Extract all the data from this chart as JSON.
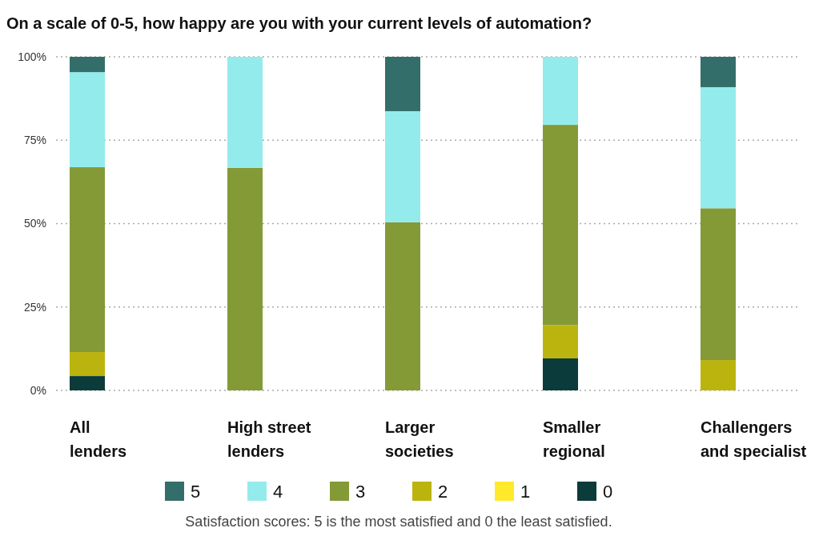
{
  "chart_data": {
    "type": "bar",
    "stacked": true,
    "title": "On a scale of 0-5, how happy are you with your current levels of automation?",
    "categories": [
      "All\nlenders",
      "High street\nlenders",
      "Larger\nsocieties",
      "Smaller\nregional",
      "Challengers\nand specialist"
    ],
    "series": [
      {
        "name": "0",
        "color": "#0b3b3a",
        "values": [
          4.3,
          0,
          0,
          9.6,
          0
        ]
      },
      {
        "name": "1",
        "color": "#ffe92a",
        "values": [
          0,
          0,
          0,
          0,
          0
        ]
      },
      {
        "name": "2",
        "color": "#bbb40e",
        "values": [
          7.2,
          0,
          0,
          10,
          9.1
        ]
      },
      {
        "name": "3",
        "color": "#849a37",
        "values": [
          55.4,
          66.7,
          50.4,
          60,
          45.5
        ]
      },
      {
        "name": "4",
        "color": "#94ebec",
        "values": [
          28.5,
          33.3,
          33.3,
          20.4,
          36.3
        ]
      },
      {
        "name": "5",
        "color": "#336e6a",
        "values": [
          4.6,
          0,
          16.3,
          0,
          9.1
        ]
      }
    ],
    "ylim": [
      0,
      100
    ],
    "yticks": [
      {
        "value": 0,
        "label": "0%"
      },
      {
        "value": 25,
        "label": "25%"
      },
      {
        "value": 50,
        "label": "50%"
      },
      {
        "value": 75,
        "label": "75%"
      },
      {
        "value": 100,
        "label": "100%"
      }
    ],
    "grid": "y",
    "legend": "bottom",
    "annotations": [
      "Satisfaction scores: 5 is the most satisfied and 0 the least satisfied."
    ]
  }
}
